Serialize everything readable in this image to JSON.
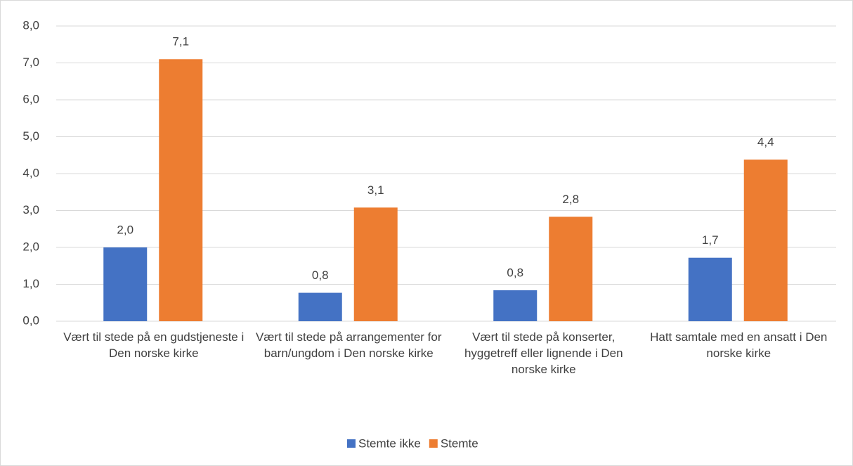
{
  "chart_data": {
    "type": "bar",
    "categories": [
      "Vært til stede på en gudstjeneste i Den norske kirke",
      "Vært til stede på arrangementer for barn/ungdom i Den norske kirke",
      "Vært til stede på konserter, hyggetreff eller lignende i Den norske kirke",
      "Hatt samtale med en ansatt i Den norske kirke"
    ],
    "series": [
      {
        "name": "Stemte ikke",
        "color": "#4472c4",
        "values": [
          2.0,
          0.77,
          0.84,
          1.72
        ],
        "value_labels": [
          "2,0",
          "0,8",
          "0,8",
          "1,7"
        ]
      },
      {
        "name": "Stemte",
        "color": "#ed7d31",
        "values": [
          7.1,
          3.08,
          2.83,
          4.38
        ],
        "value_labels": [
          "7,1",
          "3,1",
          "2,8",
          "4,4"
        ]
      }
    ],
    "ylim": [
      0,
      8
    ],
    "yticks": [
      {
        "value": 0,
        "label": "0,0"
      },
      {
        "value": 1,
        "label": "1,0"
      },
      {
        "value": 2,
        "label": "2,0"
      },
      {
        "value": 3,
        "label": "3,0"
      },
      {
        "value": 4,
        "label": "4,0"
      },
      {
        "value": 5,
        "label": "5,0"
      },
      {
        "value": 6,
        "label": "6,0"
      },
      {
        "value": 7,
        "label": "7,0"
      },
      {
        "value": 8,
        "label": "8,0"
      }
    ],
    "grid": true,
    "legend": "bottom"
  }
}
